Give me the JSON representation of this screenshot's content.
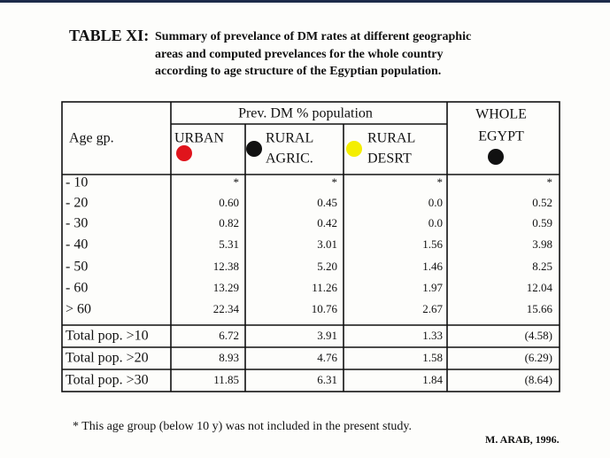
{
  "title": {
    "label": "TABLE XI:",
    "lines": [
      "Summary of prevelance of DM rates at different geographic",
      "areas and computed prevelances for the whole country",
      "according to age structure of the Egyptian population."
    ]
  },
  "table": {
    "age_header": "Age gp.",
    "group_header": "Prev. DM % population",
    "columns": [
      {
        "lines": [
          "URBAN"
        ]
      },
      {
        "lines": [
          "RURAL",
          "AGRIC."
        ]
      },
      {
        "lines": [
          "RURAL",
          "DESRT"
        ]
      },
      {
        "lines": [
          "WHOLE",
          "EGYPT"
        ]
      }
    ],
    "rows": [
      {
        "label": "- 10",
        "cells": [
          "*",
          "*",
          "*",
          "*"
        ]
      },
      {
        "label": "- 20",
        "cells": [
          "0.60",
          "0.45",
          "0.0",
          "0.52"
        ]
      },
      {
        "label": "- 30",
        "cells": [
          "0.82",
          "0.42",
          "0.0",
          "0.59"
        ]
      },
      {
        "label": "- 40",
        "cells": [
          "5.31",
          "3.01",
          "1.56",
          "3.98"
        ]
      },
      {
        "label": "- 50",
        "cells": [
          "12.38",
          "5.20",
          "1.46",
          "8.25"
        ]
      },
      {
        "label": "- 60",
        "cells": [
          "13.29",
          "11.26",
          "1.97",
          "12.04"
        ]
      },
      {
        "label": "> 60",
        "cells": [
          "22.34",
          "10.76",
          "2.67",
          "15.66"
        ]
      },
      {
        "label": "Total pop. >10",
        "cells": [
          "6.72",
          "3.91",
          "1.33",
          "(4.58)"
        ]
      },
      {
        "label": "Total pop. >20",
        "cells": [
          "8.93",
          "4.76",
          "1.58",
          "(6.29)"
        ]
      },
      {
        "label": "Total pop. >30",
        "cells": [
          "11.85",
          "6.31",
          "1.84",
          "(8.64)"
        ]
      }
    ]
  },
  "footnote": "* This age group (below 10 y) was not included in the present study.",
  "credit": "M. ARAB, 1996."
}
